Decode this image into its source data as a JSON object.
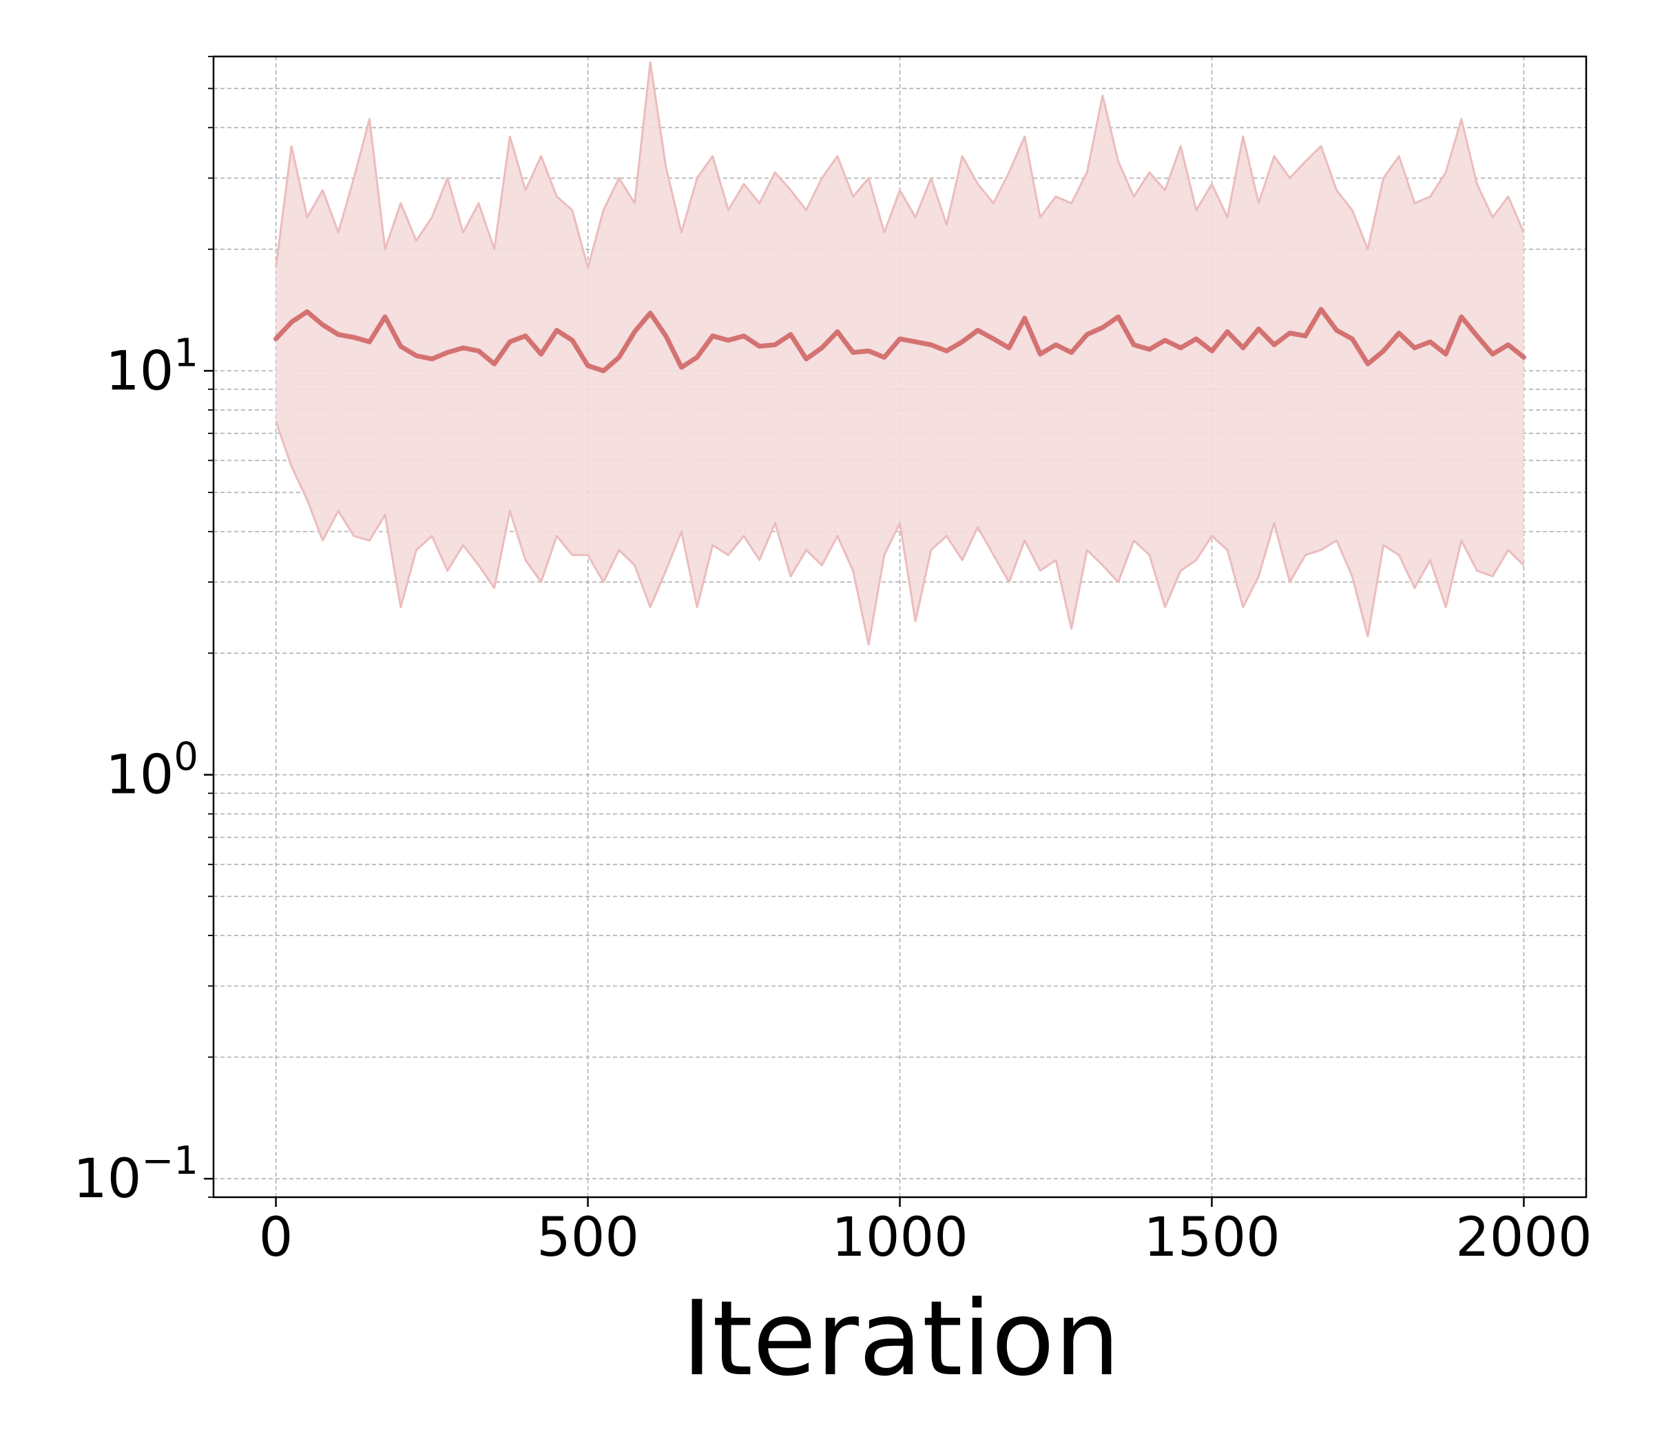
{
  "chart_data": {
    "type": "line",
    "title": "",
    "xlabel": "Iteration",
    "ylabel": "",
    "xscale": "linear",
    "yscale": "log",
    "xlim": [
      -100,
      2100
    ],
    "ylim": [
      0.09,
      60
    ],
    "x_ticks": [
      0,
      500,
      1000,
      1500,
      2000
    ],
    "x_tick_labels": [
      "0",
      "500",
      "1000",
      "1500",
      "2000"
    ],
    "y_ticks": [
      {
        "value": 0.1,
        "base": "10",
        "exp": "−1"
      },
      {
        "value": 1,
        "base": "10",
        "exp": "0"
      },
      {
        "value": 10,
        "base": "10",
        "exp": "1"
      }
    ],
    "grid": true,
    "grid_style": "dashed",
    "legend": "none",
    "colors": {
      "main_line": "#d47272",
      "band_fill": "#f4dcdc",
      "band_edge": "#ecbcbc",
      "grid": "#b0b0b0",
      "axes": "#000000"
    },
    "series": [
      {
        "role": "smoothed_mean",
        "x": [
          0,
          25,
          50,
          75,
          100,
          125,
          150,
          175,
          200,
          225,
          250,
          275,
          300,
          325,
          350,
          375,
          400,
          425,
          450,
          475,
          500,
          525,
          550,
          575,
          600,
          625,
          650,
          675,
          700,
          725,
          750,
          775,
          800,
          825,
          850,
          875,
          900,
          925,
          950,
          975,
          1000,
          1025,
          1050,
          1075,
          1100,
          1125,
          1150,
          1175,
          1200,
          1225,
          1250,
          1275,
          1300,
          1325,
          1350,
          1375,
          1400,
          1425,
          1450,
          1475,
          1500,
          1525,
          1550,
          1575,
          1600,
          1625,
          1650,
          1675,
          1700,
          1725,
          1750,
          1775,
          1800,
          1825,
          1850,
          1875,
          1900,
          1925,
          1950,
          1975,
          2000
        ],
        "y": [
          12.0,
          13.2,
          14.0,
          13.0,
          12.3,
          12.1,
          11.8,
          13.6,
          11.5,
          10.9,
          10.7,
          11.1,
          11.4,
          11.2,
          10.4,
          11.8,
          12.2,
          11.0,
          12.6,
          11.9,
          10.3,
          10.0,
          10.8,
          12.5,
          13.9,
          12.2,
          10.2,
          10.8,
          12.2,
          11.9,
          12.2,
          11.5,
          11.6,
          12.3,
          10.7,
          11.4,
          12.5,
          11.1,
          11.2,
          10.8,
          12.0,
          11.8,
          11.6,
          11.2,
          11.8,
          12.6,
          12.0,
          11.4,
          13.5,
          11.0,
          11.6,
          11.1,
          12.3,
          12.8,
          13.6,
          11.6,
          11.3,
          11.9,
          11.4,
          12.0,
          11.2,
          12.5,
          11.4,
          12.7,
          11.6,
          12.4,
          12.2,
          14.2,
          12.6,
          12.0,
          10.4,
          11.2,
          12.4,
          11.4,
          11.8,
          11.0,
          13.6,
          12.2,
          11.0,
          11.6,
          10.8
        ]
      },
      {
        "role": "band_upper",
        "x": [
          0,
          25,
          50,
          75,
          100,
          125,
          150,
          175,
          200,
          225,
          250,
          275,
          300,
          325,
          350,
          375,
          400,
          425,
          450,
          475,
          500,
          525,
          550,
          575,
          600,
          625,
          650,
          675,
          700,
          725,
          750,
          775,
          800,
          825,
          850,
          875,
          900,
          925,
          950,
          975,
          1000,
          1025,
          1050,
          1075,
          1100,
          1125,
          1150,
          1175,
          1200,
          1225,
          1250,
          1275,
          1300,
          1325,
          1350,
          1375,
          1400,
          1425,
          1450,
          1475,
          1500,
          1525,
          1550,
          1575,
          1600,
          1625,
          1650,
          1675,
          1700,
          1725,
          1750,
          1775,
          1800,
          1825,
          1850,
          1875,
          1900,
          1925,
          1950,
          1975,
          2000
        ],
        "y": [
          18,
          36,
          24,
          28,
          22,
          30,
          42,
          20,
          26,
          21,
          24,
          30,
          22,
          26,
          20,
          38,
          28,
          34,
          27,
          25,
          18,
          25,
          30,
          26,
          58,
          32,
          22,
          30,
          34,
          25,
          29,
          26,
          31,
          28,
          25,
          30,
          34,
          27,
          30,
          22,
          28,
          24,
          30,
          23,
          34,
          29,
          26,
          31,
          38,
          24,
          27,
          26,
          31,
          48,
          33,
          27,
          31,
          28,
          36,
          25,
          29,
          24,
          38,
          26,
          34,
          30,
          33,
          36,
          28,
          25,
          20,
          30,
          34,
          26,
          27,
          31,
          42,
          29,
          24,
          27,
          22
        ]
      },
      {
        "role": "band_lower",
        "x": [
          0,
          25,
          50,
          75,
          100,
          125,
          150,
          175,
          200,
          225,
          250,
          275,
          300,
          325,
          350,
          375,
          400,
          425,
          450,
          475,
          500,
          525,
          550,
          575,
          600,
          625,
          650,
          675,
          700,
          725,
          750,
          775,
          800,
          825,
          850,
          875,
          900,
          925,
          950,
          975,
          1000,
          1025,
          1050,
          1075,
          1100,
          1125,
          1150,
          1175,
          1200,
          1225,
          1250,
          1275,
          1300,
          1325,
          1350,
          1375,
          1400,
          1425,
          1450,
          1475,
          1500,
          1525,
          1550,
          1575,
          1600,
          1625,
          1650,
          1675,
          1700,
          1725,
          1750,
          1775,
          1800,
          1825,
          1850,
          1875,
          1900,
          1925,
          1950,
          1975,
          2000
        ],
        "y": [
          7.5,
          5.8,
          4.8,
          3.8,
          4.5,
          3.9,
          3.8,
          4.4,
          2.6,
          3.6,
          3.9,
          3.2,
          3.7,
          3.3,
          2.9,
          4.5,
          3.4,
          3.0,
          3.9,
          3.5,
          3.5,
          3.0,
          3.6,
          3.3,
          2.6,
          3.2,
          4.0,
          2.6,
          3.7,
          3.5,
          3.9,
          3.4,
          4.2,
          3.1,
          3.6,
          3.3,
          3.9,
          3.2,
          2.1,
          3.5,
          4.2,
          2.4,
          3.6,
          3.9,
          3.4,
          4.1,
          3.5,
          3.0,
          3.8,
          3.2,
          3.4,
          2.3,
          3.6,
          3.3,
          3.0,
          3.8,
          3.5,
          2.6,
          3.2,
          3.4,
          3.9,
          3.6,
          2.6,
          3.1,
          4.2,
          3.0,
          3.5,
          3.6,
          3.8,
          3.1,
          2.2,
          3.7,
          3.5,
          2.9,
          3.4,
          2.6,
          3.8,
          3.2,
          3.1,
          3.6,
          3.3
        ]
      }
    ]
  }
}
